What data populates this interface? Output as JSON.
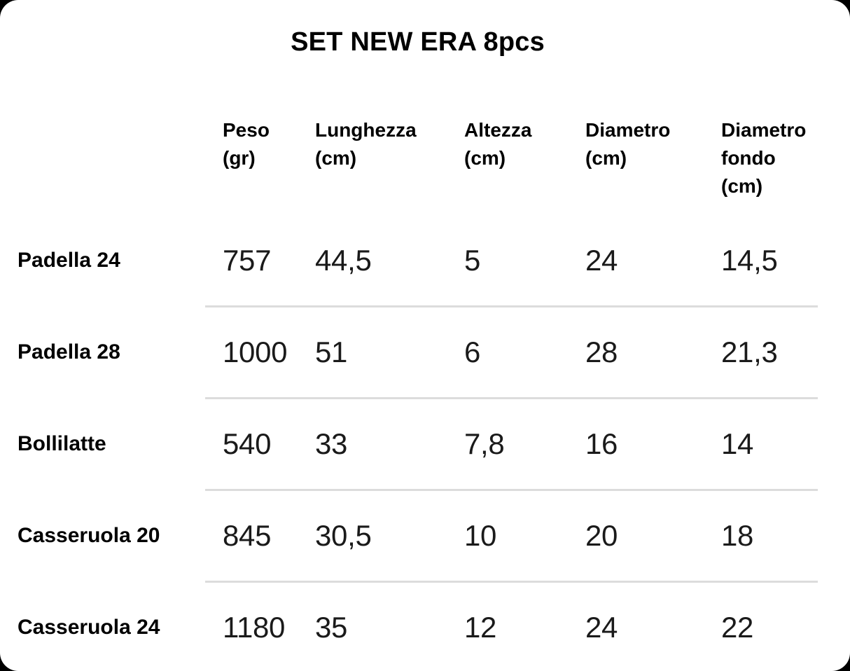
{
  "page": {
    "title": "SET NEW ERA 8pcs"
  },
  "table": {
    "columns": [
      {
        "line1": "Peso",
        "line2": "(gr)"
      },
      {
        "line1": "Lunghezza",
        "line2": "(cm)"
      },
      {
        "line1": "Altezza",
        "line2": "(cm)"
      },
      {
        "line1": "Diametro",
        "line2": "(cm)"
      },
      {
        "line1": "Diametro",
        "line2": "fondo (cm)"
      }
    ],
    "rows": [
      {
        "label": "Padella 24",
        "values": [
          "757",
          "44,5",
          "5",
          "24",
          "14,5"
        ]
      },
      {
        "label": "Padella 28",
        "values": [
          "1000",
          "51",
          "6",
          "28",
          "21,3"
        ]
      },
      {
        "label": "Bollilatte",
        "values": [
          "540",
          "33",
          "7,8",
          "16",
          "14"
        ]
      },
      {
        "label": "Casseruola 20",
        "values": [
          "845",
          "30,5",
          "10",
          "20",
          "18"
        ]
      },
      {
        "label": "Casseruola 24",
        "values": [
          "1180",
          "35",
          "12",
          "24",
          "22"
        ]
      }
    ]
  },
  "colors": {
    "page_background": "#000000",
    "card_background": "#ffffff",
    "heading_text": "#000000",
    "value_text": "#1a1a1a",
    "divider": "#dcdcdc"
  },
  "chart_data": {
    "type": "table",
    "title": "SET NEW ERA 8pcs",
    "columns": [
      "",
      "Peso (gr)",
      "Lunghezza (cm)",
      "Altezza (cm)",
      "Diametro (cm)",
      "Diametro fondo (cm)"
    ],
    "rows": [
      [
        "Padella 24",
        "757",
        "44,5",
        "5",
        "24",
        "14,5"
      ],
      [
        "Padella 28",
        "1000",
        "51",
        "6",
        "28",
        "21,3"
      ],
      [
        "Bollilatte",
        "540",
        "33",
        "7,8",
        "16",
        "14"
      ],
      [
        "Casseruola 20",
        "845",
        "30,5",
        "10",
        "20",
        "18"
      ],
      [
        "Casseruola 24",
        "1180",
        "35",
        "12",
        "24",
        "22"
      ]
    ],
    "layout": {
      "title_position": "top-center",
      "row_dividers": "between data rows, value columns only",
      "value_decimal_separator": ","
    }
  }
}
